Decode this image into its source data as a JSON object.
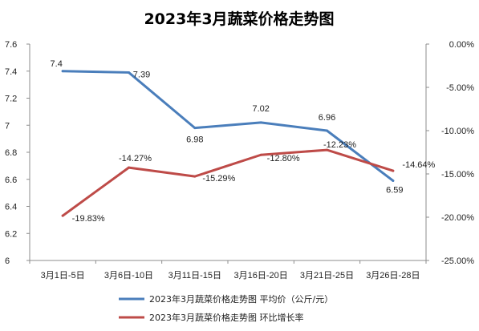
{
  "chart_data": {
    "type": "line",
    "title": "2023年3月蔬菜价格走势图",
    "categories": [
      "3月1日-5日",
      "3月6日-10日",
      "3月11日-15日",
      "3月16日-20日",
      "3月21日-25日",
      "3月26日-28日"
    ],
    "y_left": {
      "ylim": [
        6,
        7.6
      ],
      "ticks": [
        "6",
        "6.2",
        "6.4",
        "6.6",
        "6.8",
        "7",
        "7.2",
        "7.4",
        "7.6"
      ]
    },
    "y_right": {
      "ylim": [
        -25,
        0
      ],
      "ticks": [
        "-25.00%",
        "-20.00%",
        "-15.00%",
        "-10.00%",
        "-5.00%",
        "0.00%"
      ]
    },
    "series": [
      {
        "name": "2023年3月蔬菜价格走势图 平均价（公斤/元）",
        "axis": "left",
        "color": "#4a7ebb",
        "values": [
          7.4,
          7.39,
          6.98,
          7.02,
          6.96,
          6.59
        ],
        "labels": [
          "7.4",
          "7.39",
          "6.98",
          "7.02",
          "6.96",
          "6.59"
        ]
      },
      {
        "name": "2023年3月蔬菜价格走势图 环比增长率",
        "axis": "right",
        "color": "#be4b48",
        "values": [
          -19.83,
          -14.27,
          -15.29,
          -12.8,
          -12.23,
          -14.64
        ],
        "labels": [
          "-19.83%",
          "-14.27%",
          "-15.29%",
          "-12.80%",
          "-12.23%",
          "-14.64%"
        ]
      }
    ],
    "grid": false,
    "legend": "bottom"
  }
}
